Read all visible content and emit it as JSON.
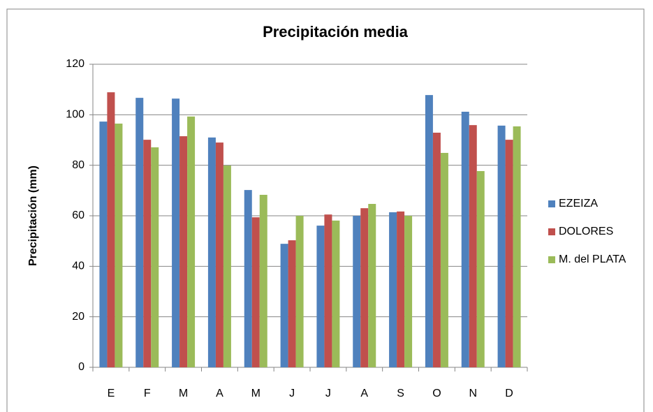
{
  "chart_data": {
    "type": "bar",
    "title": "Precipitación media",
    "y_label": "Precipitación (mm)",
    "categories": [
      "E",
      "F",
      "M",
      "A",
      "M",
      "J",
      "J",
      "A",
      "S",
      "O",
      "N",
      "D"
    ],
    "series": [
      {
        "name": "EZEIZA",
        "color": "#4f81bd",
        "values": [
          97.3,
          106.7,
          106.4,
          91,
          70.2,
          48.9,
          56.1,
          60,
          61.4,
          107.8,
          101.2,
          95.7
        ]
      },
      {
        "name": "DOLORES",
        "color": "#c0504d",
        "values": [
          108.9,
          90.1,
          91.5,
          89,
          59.4,
          50.3,
          60.5,
          63,
          61.7,
          92.9,
          95.9,
          90.1
        ]
      },
      {
        "name": "M. del PLATA",
        "color": "#9bbb59",
        "values": [
          96.5,
          87.1,
          99.3,
          79.9,
          68.3,
          60,
          58.1,
          64.7,
          60,
          84.9,
          77.7,
          95.4
        ]
      }
    ],
    "ylim": [
      0,
      120
    ],
    "yticks": [
      0,
      20,
      40,
      60,
      80,
      100,
      120
    ],
    "grid": true,
    "legend": "right"
  }
}
